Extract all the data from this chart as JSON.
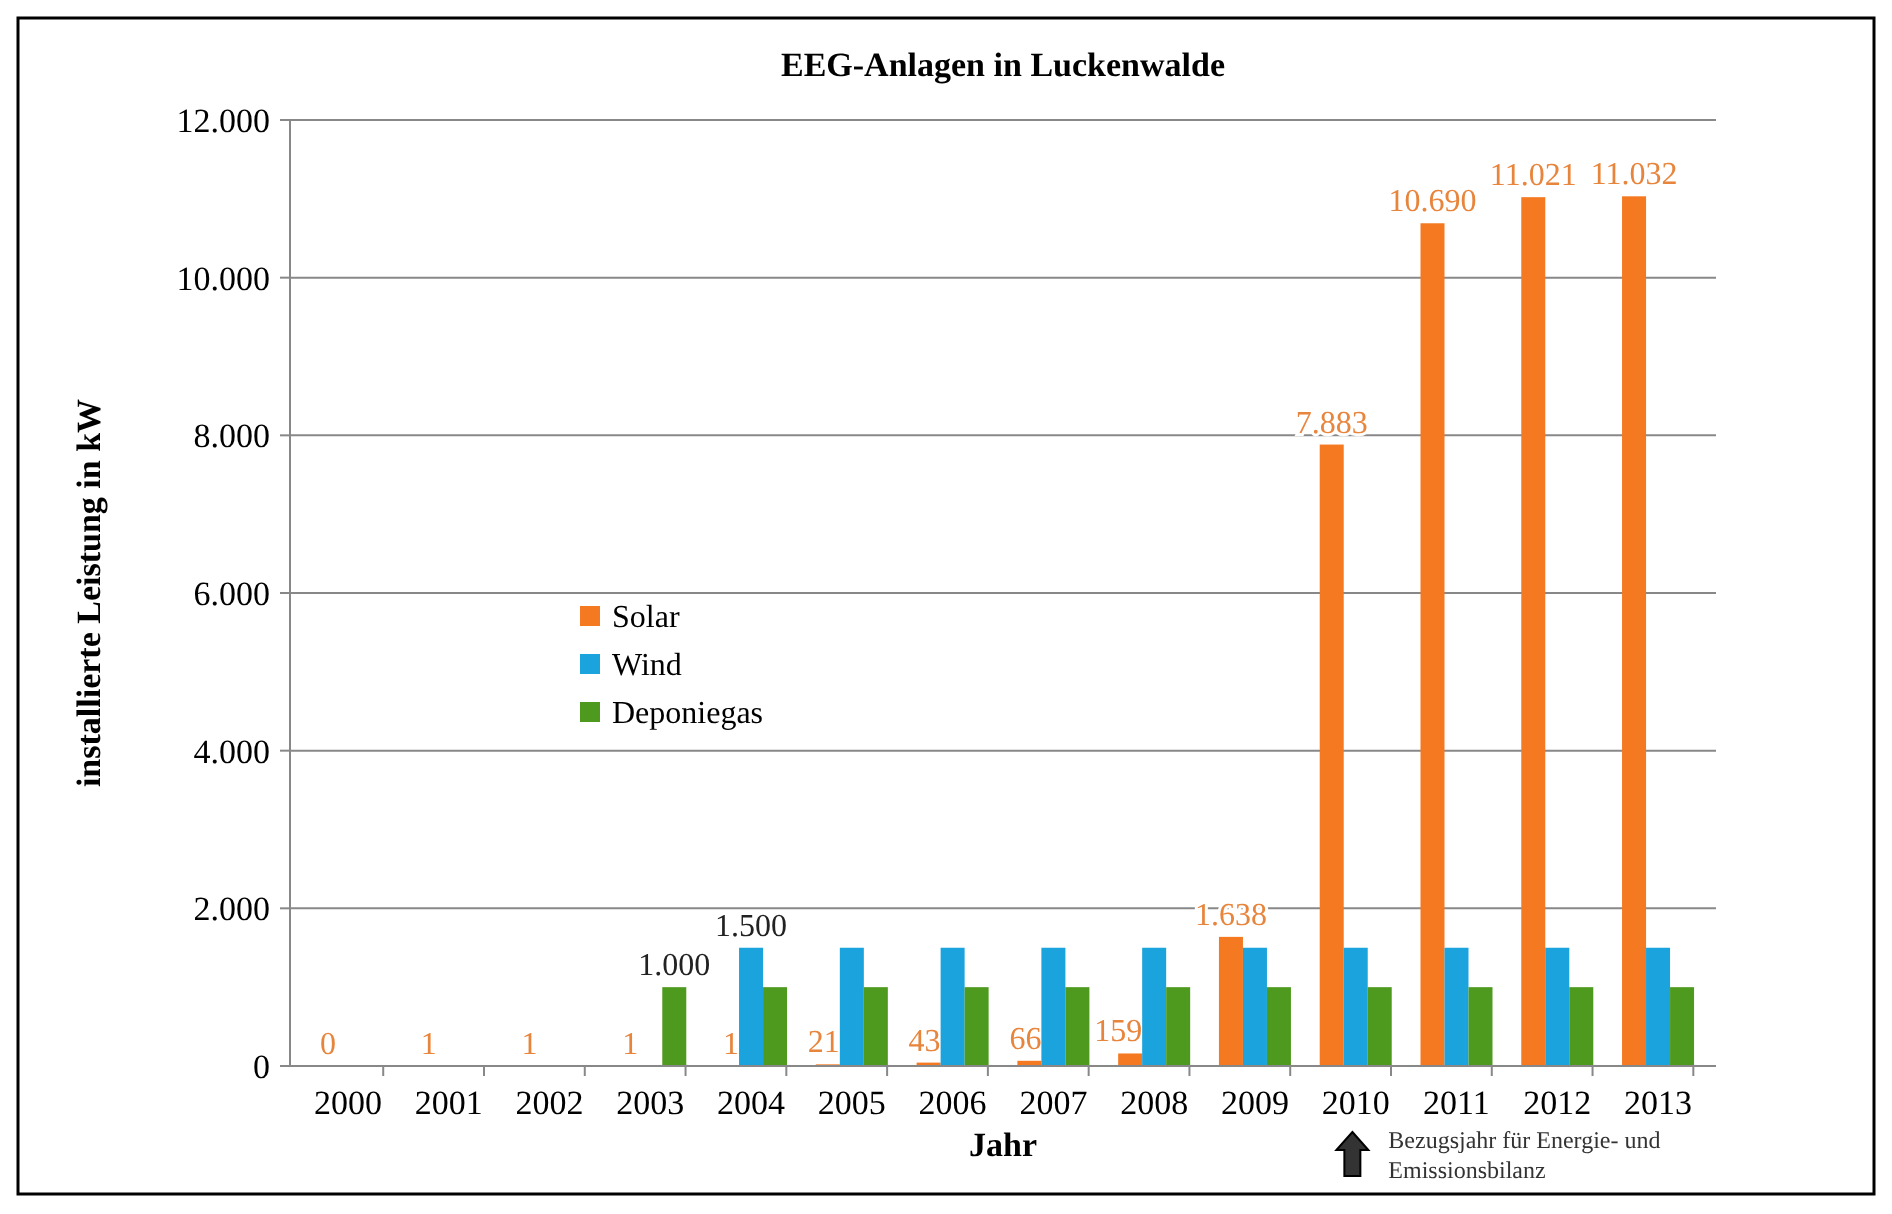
{
  "chart_data": {
    "type": "bar",
    "title": "EEG-Anlagen in Luckenwalde",
    "xlabel": "Jahr",
    "ylabel": "installierte Leistung in kW",
    "categories": [
      "2000",
      "2001",
      "2002",
      "2003",
      "2004",
      "2005",
      "2006",
      "2007",
      "2008",
      "2009",
      "2010",
      "2011",
      "2012",
      "2013"
    ],
    "series": [
      {
        "name": "Solar",
        "color": "#f47920",
        "values": [
          0,
          1,
          1,
          1,
          1,
          21,
          43,
          66,
          159,
          1638,
          7883,
          10690,
          11021,
          11032
        ],
        "value_labels": [
          "0",
          "1",
          "1",
          "1",
          "1",
          "21",
          "43",
          "66",
          "159",
          "1.638",
          "7.883",
          "10.690",
          "11.021",
          "11.032"
        ]
      },
      {
        "name": "Wind",
        "color": "#1aa3dd",
        "values": [
          0,
          0,
          0,
          0,
          1500,
          1500,
          1500,
          1500,
          1500,
          1500,
          1500,
          1500,
          1500,
          1500
        ],
        "value_labels": [
          null,
          null,
          null,
          null,
          "1.500",
          null,
          null,
          null,
          null,
          null,
          null,
          null,
          null,
          null
        ]
      },
      {
        "name": "Deponiegas",
        "color": "#4e9a1e",
        "values": [
          0,
          0,
          0,
          1000,
          1000,
          1000,
          1000,
          1000,
          1000,
          1000,
          1000,
          1000,
          1000,
          1000
        ],
        "value_labels": [
          null,
          null,
          null,
          "1.000",
          null,
          null,
          null,
          null,
          null,
          null,
          null,
          null,
          null,
          null
        ]
      }
    ],
    "ylim": [
      0,
      12000
    ],
    "yticks": [
      {
        "value": 0,
        "label": "0"
      },
      {
        "value": 2000,
        "label": "2.000"
      },
      {
        "value": 4000,
        "label": "4.000"
      },
      {
        "value": 6000,
        "label": "6.000"
      },
      {
        "value": 8000,
        "label": "8.000"
      },
      {
        "value": 10000,
        "label": "10.000"
      },
      {
        "value": 12000,
        "label": "12.000"
      }
    ],
    "grid": "y",
    "legend": "left",
    "annotations": [
      "Bezugsjahr für Energie- und Emissionsbilanz"
    ]
  }
}
